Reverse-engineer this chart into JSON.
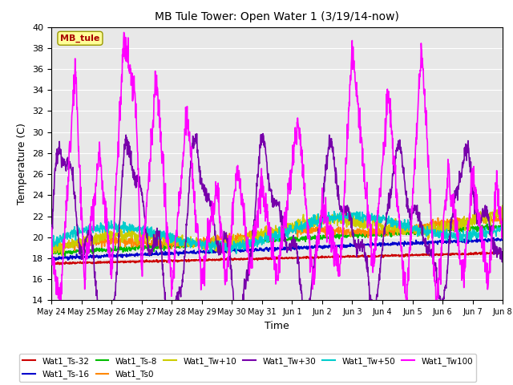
{
  "title": "MB Tule Tower: Open Water 1 (3/19/14-now)",
  "xlabel": "Time",
  "ylabel": "Temperature (C)",
  "ylim": [
    14,
    40
  ],
  "yticks": [
    14,
    16,
    18,
    20,
    22,
    24,
    26,
    28,
    30,
    32,
    34,
    36,
    38,
    40
  ],
  "annotation_label": "MB_tule",
  "series": [
    {
      "label": "Wat1_Ts-32",
      "color": "#cc0000"
    },
    {
      "label": "Wat1_Ts-16",
      "color": "#0000cc"
    },
    {
      "label": "Wat1_Ts-8",
      "color": "#00bb00"
    },
    {
      "label": "Wat1_Ts0",
      "color": "#ff8800"
    },
    {
      "label": "Wat1_Tw+10",
      "color": "#cccc00"
    },
    {
      "label": "Wat1_Tw+30",
      "color": "#7700aa"
    },
    {
      "label": "Wat1_Tw+50",
      "color": "#00cccc"
    },
    {
      "label": "Wat1_Tw100",
      "color": "#ff00ff"
    }
  ],
  "background_color": "#ffffff",
  "plot_bg_color": "#e8e8e8",
  "grid_color": "#ffffff",
  "xtick_labels": [
    "May 24",
    "May 25",
    "May 26",
    "May 27",
    "May 28",
    "May 29",
    "May 30",
    "May 31",
    "Jun 1",
    "Jun 2",
    "Jun 3",
    "Jun 4",
    "Jun 5",
    "Jun 6",
    "Jun 7",
    "Jun 8"
  ]
}
